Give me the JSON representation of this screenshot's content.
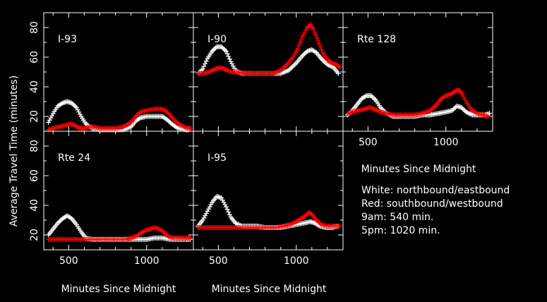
{
  "chart_data": {
    "type": "scatter",
    "ylabel": "Average Travel Time (minutes)",
    "xlabel": "Minutes Since Midnight",
    "colors": {
      "northbound_eastbound": "#ffffff",
      "southbound_westbound": "#ff0000",
      "axes": "#ffffff",
      "background": "#000000"
    },
    "xlim": [
      340,
      1300
    ],
    "ylim": [
      10,
      90
    ],
    "xticks": [
      500,
      1000
    ],
    "yticks": [
      20,
      40,
      60,
      80
    ],
    "panels": [
      {
        "label": "I-93",
        "series": [
          {
            "values": [
              [
                370,
                16
              ],
              [
                400,
                22
              ],
              [
                430,
                27
              ],
              [
                460,
                29
              ],
              [
                490,
                30
              ],
              [
                520,
                29
              ],
              [
                550,
                26
              ],
              [
                580,
                20
              ],
              [
                610,
                15
              ],
              [
                650,
                12
              ],
              [
                700,
                11
              ],
              [
                750,
                11
              ],
              [
                800,
                11
              ],
              [
                850,
                11
              ],
              [
                900,
                13
              ],
              [
                930,
                17
              ],
              [
                960,
                19
              ],
              [
                1000,
                20
              ],
              [
                1050,
                20
              ],
              [
                1100,
                20
              ],
              [
                1130,
                18
              ],
              [
                1160,
                15
              ],
              [
                1200,
                12
              ],
              [
                1250,
                11
              ],
              [
                1270,
                11
              ]
            ]
          },
          {
            "values": [
              [
                370,
                11
              ],
              [
                400,
                12
              ],
              [
                440,
                13
              ],
              [
                480,
                14
              ],
              [
                510,
                15
              ],
              [
                540,
                14
              ],
              [
                570,
                12
              ],
              [
                600,
                12
              ],
              [
                630,
                13
              ],
              [
                660,
                13
              ],
              [
                700,
                12
              ],
              [
                750,
                12
              ],
              [
                800,
                12
              ],
              [
                850,
                13
              ],
              [
                900,
                16
              ],
              [
                930,
                20
              ],
              [
                960,
                23
              ],
              [
                1000,
                24
              ],
              [
                1050,
                25
              ],
              [
                1090,
                25
              ],
              [
                1120,
                24
              ],
              [
                1150,
                21
              ],
              [
                1180,
                17
              ],
              [
                1220,
                14
              ],
              [
                1260,
                12
              ],
              [
                1280,
                12
              ]
            ]
          }
        ]
      },
      {
        "label": "I-90",
        "series": [
          {
            "values": [
              [
                370,
                49
              ],
              [
                400,
                52
              ],
              [
                430,
                59
              ],
              [
                460,
                64
              ],
              [
                490,
                67
              ],
              [
                520,
                67
              ],
              [
                550,
                64
              ],
              [
                580,
                57
              ],
              [
                610,
                51
              ],
              [
                650,
                49
              ],
              [
                700,
                49
              ],
              [
                750,
                49
              ],
              [
                800,
                49
              ],
              [
                850,
                49
              ],
              [
                900,
                49
              ],
              [
                950,
                51
              ],
              [
                1000,
                56
              ],
              [
                1040,
                61
              ],
              [
                1070,
                64
              ],
              [
                1100,
                65
              ],
              [
                1130,
                63
              ],
              [
                1160,
                59
              ],
              [
                1200,
                55
              ],
              [
                1240,
                53
              ],
              [
                1270,
                49
              ]
            ]
          },
          {
            "values": [
              [
                370,
                49
              ],
              [
                400,
                49
              ],
              [
                440,
                50
              ],
              [
                480,
                52
              ],
              [
                510,
                53
              ],
              [
                540,
                52
              ],
              [
                580,
                50
              ],
              [
                620,
                50
              ],
              [
                660,
                49
              ],
              [
                700,
                49
              ],
              [
                750,
                49
              ],
              [
                800,
                49
              ],
              [
                850,
                49
              ],
              [
                900,
                51
              ],
              [
                940,
                55
              ],
              [
                980,
                60
              ],
              [
                1010,
                66
              ],
              [
                1040,
                74
              ],
              [
                1070,
                80
              ],
              [
                1090,
                82
              ],
              [
                1110,
                79
              ],
              [
                1140,
                71
              ],
              [
                1170,
                63
              ],
              [
                1200,
                58
              ],
              [
                1230,
                56
              ],
              [
                1260,
                55
              ],
              [
                1280,
                53
              ]
            ]
          }
        ]
      },
      {
        "label": "Rte 128",
        "series": [
          {
            "values": [
              [
                370,
                21
              ],
              [
                400,
                24
              ],
              [
                430,
                28
              ],
              [
                460,
                32
              ],
              [
                490,
                34
              ],
              [
                520,
                34
              ],
              [
                550,
                31
              ],
              [
                580,
                26
              ],
              [
                620,
                22
              ],
              [
                660,
                20
              ],
              [
                700,
                20
              ],
              [
                750,
                20
              ],
              [
                800,
                20
              ],
              [
                850,
                21
              ],
              [
                900,
                21
              ],
              [
                950,
                22
              ],
              [
                1000,
                23
              ],
              [
                1040,
                24
              ],
              [
                1070,
                27
              ],
              [
                1100,
                26
              ],
              [
                1130,
                23
              ],
              [
                1170,
                21
              ],
              [
                1210,
                21
              ],
              [
                1250,
                21
              ],
              [
                1280,
                22
              ]
            ]
          },
          {
            "values": [
              [
                370,
                22
              ],
              [
                400,
                23
              ],
              [
                440,
                24
              ],
              [
                480,
                25
              ],
              [
                510,
                26
              ],
              [
                540,
                25
              ],
              [
                580,
                23
              ],
              [
                620,
                22
              ],
              [
                660,
                21
              ],
              [
                700,
                21
              ],
              [
                750,
                21
              ],
              [
                800,
                21
              ],
              [
                850,
                22
              ],
              [
                900,
                24
              ],
              [
                940,
                28
              ],
              [
                970,
                32
              ],
              [
                1000,
                34
              ],
              [
                1030,
                35
              ],
              [
                1060,
                37
              ],
              [
                1080,
                38
              ],
              [
                1100,
                36
              ],
              [
                1130,
                30
              ],
              [
                1160,
                25
              ],
              [
                1200,
                22
              ],
              [
                1240,
                21
              ],
              [
                1270,
                20
              ]
            ]
          }
        ]
      },
      {
        "label": "Rte 24",
        "series": [
          {
            "values": [
              [
                370,
                20
              ],
              [
                400,
                24
              ],
              [
                430,
                28
              ],
              [
                460,
                31
              ],
              [
                490,
                33
              ],
              [
                520,
                31
              ],
              [
                550,
                27
              ],
              [
                580,
                22
              ],
              [
                610,
                18
              ],
              [
                650,
                17
              ],
              [
                700,
                17
              ],
              [
                750,
                17
              ],
              [
                800,
                17
              ],
              [
                850,
                17
              ],
              [
                900,
                17
              ],
              [
                950,
                17
              ],
              [
                1000,
                17
              ],
              [
                1050,
                18
              ],
              [
                1100,
                18
              ],
              [
                1150,
                17
              ],
              [
                1200,
                17
              ],
              [
                1250,
                17
              ],
              [
                1280,
                17
              ]
            ]
          },
          {
            "values": [
              [
                370,
                17
              ],
              [
                420,
                17
              ],
              [
                470,
                17
              ],
              [
                520,
                17
              ],
              [
                570,
                17
              ],
              [
                620,
                17
              ],
              [
                670,
                17
              ],
              [
                720,
                17
              ],
              [
                770,
                17
              ],
              [
                820,
                17
              ],
              [
                870,
                17
              ],
              [
                900,
                18
              ],
              [
                930,
                19
              ],
              [
                960,
                21
              ],
              [
                990,
                23
              ],
              [
                1020,
                24
              ],
              [
                1050,
                25
              ],
              [
                1080,
                24
              ],
              [
                1110,
                22
              ],
              [
                1140,
                19
              ],
              [
                1170,
                18
              ],
              [
                1210,
                18
              ],
              [
                1250,
                18
              ],
              [
                1280,
                18
              ]
            ]
          }
        ]
      },
      {
        "label": "I-95",
        "series": [
          {
            "values": [
              [
                370,
                26
              ],
              [
                400,
                30
              ],
              [
                430,
                36
              ],
              [
                460,
                42
              ],
              [
                490,
                46
              ],
              [
                520,
                45
              ],
              [
                550,
                39
              ],
              [
                580,
                32
              ],
              [
                610,
                28
              ],
              [
                650,
                26
              ],
              [
                700,
                26
              ],
              [
                750,
                26
              ],
              [
                800,
                25
              ],
              [
                850,
                25
              ],
              [
                900,
                25
              ],
              [
                950,
                26
              ],
              [
                1000,
                27
              ],
              [
                1050,
                28
              ],
              [
                1090,
                29
              ],
              [
                1120,
                28
              ],
              [
                1150,
                26
              ],
              [
                1190,
                25
              ],
              [
                1230,
                25
              ],
              [
                1270,
                26
              ]
            ]
          },
          {
            "values": [
              [
                370,
                25
              ],
              [
                420,
                25
              ],
              [
                470,
                25
              ],
              [
                520,
                25
              ],
              [
                570,
                25
              ],
              [
                620,
                25
              ],
              [
                670,
                25
              ],
              [
                720,
                25
              ],
              [
                770,
                25
              ],
              [
                820,
                25
              ],
              [
                870,
                25
              ],
              [
                920,
                26
              ],
              [
                960,
                27
              ],
              [
                1000,
                29
              ],
              [
                1030,
                31
              ],
              [
                1060,
                33
              ],
              [
                1080,
                35
              ],
              [
                1100,
                34
              ],
              [
                1130,
                30
              ],
              [
                1160,
                27
              ],
              [
                1200,
                26
              ],
              [
                1240,
                26
              ],
              [
                1280,
                26
              ]
            ]
          }
        ]
      }
    ],
    "notes": [
      "White: northbound/eastbound",
      "Red: southbound/westbound",
      "9am: 540 min.",
      "5pm: 1020 min."
    ]
  }
}
